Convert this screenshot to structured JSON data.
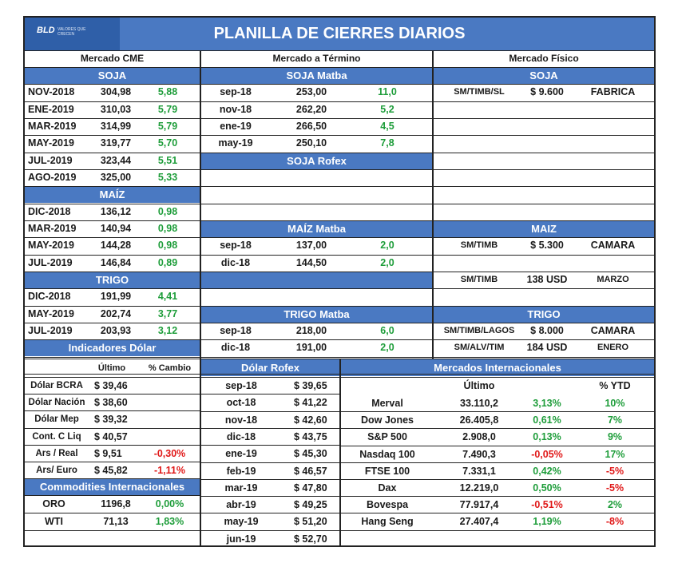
{
  "header": {
    "logo_text": "BLD",
    "logo_tagline": "VALORES QUE CRECEN",
    "title": "PLANILLA DE CIERRES DIARIOS"
  },
  "sections": {
    "cme": "Mercado CME",
    "termino": "Mercado a Término",
    "fisico": "Mercado Físico"
  },
  "cme": {
    "soja_title": "SOJA",
    "soja": [
      {
        "m": "NOV-2018",
        "p": "304,98",
        "c": "5,88"
      },
      {
        "m": "ENE-2019",
        "p": "310,03",
        "c": "5,79"
      },
      {
        "m": "MAR-2019",
        "p": "314,99",
        "c": "5,79"
      },
      {
        "m": "MAY-2019",
        "p": "319,77",
        "c": "5,70"
      },
      {
        "m": "JUL-2019",
        "p": "323,44",
        "c": "5,51"
      },
      {
        "m": "AGO-2019",
        "p": "325,00",
        "c": "5,33"
      }
    ],
    "maiz_title": "MAÍZ",
    "maiz": [
      {
        "m": "DIC-2018",
        "p": "136,12",
        "c": "0,98"
      },
      {
        "m": "MAR-2019",
        "p": "140,94",
        "c": "0,98"
      },
      {
        "m": "MAY-2019",
        "p": "144,28",
        "c": "0,98"
      },
      {
        "m": "JUL-2019",
        "p": "146,84",
        "c": "0,89"
      }
    ],
    "trigo_title": "TRIGO",
    "trigo": [
      {
        "m": "DIC-2018",
        "p": "191,99",
        "c": "4,41"
      },
      {
        "m": "MAY-2019",
        "p": "202,74",
        "c": "3,77"
      },
      {
        "m": "JUL-2019",
        "p": "203,93",
        "c": "3,12"
      }
    ]
  },
  "termino": {
    "soja_matba_title": "SOJA Matba",
    "soja_matba": [
      {
        "m": "sep-18",
        "p": "253,00",
        "c": "11,0"
      },
      {
        "m": "nov-18",
        "p": "262,20",
        "c": "5,2"
      },
      {
        "m": "ene-19",
        "p": "266,50",
        "c": "4,5"
      },
      {
        "m": "may-19",
        "p": "250,10",
        "c": "7,8"
      }
    ],
    "soja_rofex_title": "SOJA Rofex",
    "maiz_matba_title": "MAÍZ Matba",
    "maiz_matba": [
      {
        "m": "sep-18",
        "p": "137,00",
        "c": "2,0"
      },
      {
        "m": "dic-18",
        "p": "144,50",
        "c": "2,0"
      }
    ],
    "trigo_matba_title": "TRIGO Matba",
    "trigo_matba": [
      {
        "m": "sep-18",
        "p": "218,00",
        "c": "6,0"
      },
      {
        "m": "dic-18",
        "p": "191,00",
        "c": "2,0"
      }
    ]
  },
  "fisico": {
    "soja_title": "SOJA",
    "soja": [
      {
        "t": "SM/TIMB/SL",
        "p": "$ 9.600",
        "d": "FABRICA"
      }
    ],
    "maiz_title": "MAIZ",
    "maiz": [
      {
        "t": "SM/TIMB",
        "p": "$ 5.300",
        "d": "CAMARA"
      },
      {
        "t": "SM/TIMB",
        "p": "138 USD",
        "d": "MARZO"
      }
    ],
    "trigo_title": "TRIGO",
    "trigo": [
      {
        "t": "SM/TIMB/LAGOS",
        "p": "$ 8.000",
        "d": "CAMARA"
      },
      {
        "t": "SM/ALV/TIM",
        "p": "184 USD",
        "d": "ENERO"
      }
    ]
  },
  "dolar": {
    "title": "Indicadores Dólar",
    "col_ultimo": "Último",
    "col_cambio": "% Cambio",
    "rows": [
      {
        "n": "Dólar BCRA",
        "v": "$ 39,46",
        "c": ""
      },
      {
        "n": "Dólar Nación",
        "v": "$ 38,60",
        "c": ""
      },
      {
        "n": "Dólar Mep",
        "v": "$ 39,32",
        "c": ""
      },
      {
        "n": "Cont. C Liq",
        "v": "$ 40,57",
        "c": ""
      },
      {
        "n": "Ars / Real",
        "v": "$ 9,51",
        "c": "-0,30%"
      },
      {
        "n": "Ars/ Euro",
        "v": "$ 45,82",
        "c": "-1,11%"
      }
    ]
  },
  "commodities": {
    "title": "Commodities Internacionales",
    "rows": [
      {
        "n": "ORO",
        "v": "1196,8",
        "c": "0,00%"
      },
      {
        "n": "WTI",
        "v": "71,13",
        "c": "1,83%"
      }
    ]
  },
  "rofex": {
    "title": "Dólar Rofex",
    "rows": [
      {
        "m": "sep-18",
        "v": "$ 39,65"
      },
      {
        "m": "oct-18",
        "v": "$ 41,22"
      },
      {
        "m": "nov-18",
        "v": "$ 42,60"
      },
      {
        "m": "dic-18",
        "v": "$ 43,75"
      },
      {
        "m": "ene-19",
        "v": "$ 45,30"
      },
      {
        "m": "feb-19",
        "v": "$ 46,57"
      },
      {
        "m": "mar-19",
        "v": "$ 47,80"
      },
      {
        "m": "abr-19",
        "v": "$ 49,25"
      },
      {
        "m": "may-19",
        "v": "$ 51,20"
      },
      {
        "m": "jun-19",
        "v": "$ 52,70"
      }
    ]
  },
  "internacionales": {
    "title": "Mercados Internacionales",
    "col_ultimo": "Último",
    "col_ytd": "% YTD",
    "rows": [
      {
        "n": "Merval",
        "v": "33.110,2",
        "c": "3,13%",
        "y": "10%"
      },
      {
        "n": "Dow Jones",
        "v": "26.405,8",
        "c": "0,61%",
        "y": "7%"
      },
      {
        "n": "S&P 500",
        "v": "2.908,0",
        "c": "0,13%",
        "y": "9%"
      },
      {
        "n": "Nasdaq 100",
        "v": "7.490,3",
        "c": "-0,05%",
        "y": "17%"
      },
      {
        "n": "FTSE 100",
        "v": "7.331,1",
        "c": "0,42%",
        "y": "-5%"
      },
      {
        "n": "Dax",
        "v": "12.219,0",
        "c": "0,50%",
        "y": "-5%"
      },
      {
        "n": "Bovespa",
        "v": "77.917,4",
        "c": "-0,51%",
        "y": "2%"
      },
      {
        "n": "Hang Seng",
        "v": "27.407,4",
        "c": "1,19%",
        "y": "-8%"
      }
    ]
  },
  "colors": {
    "header_blue": "#4a79c2",
    "positive": "#1e9d3a",
    "negative": "#e01818"
  }
}
